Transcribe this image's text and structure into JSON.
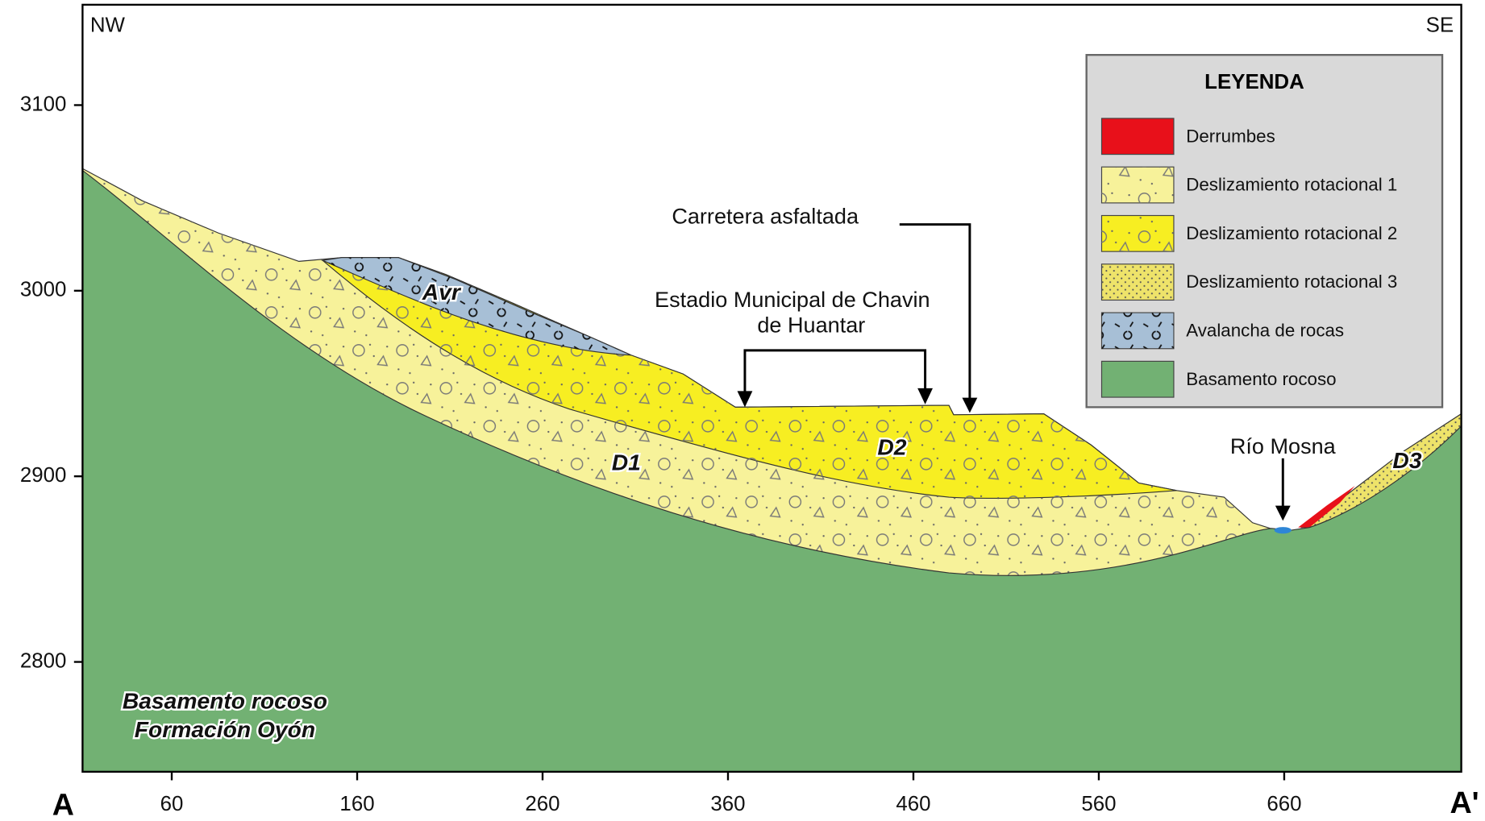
{
  "orientation": {
    "left": "NW",
    "right": "SE"
  },
  "section": {
    "start": "A",
    "end": "A'"
  },
  "axes": {
    "yticks": [
      2800,
      2900,
      3000,
      3100
    ],
    "xticks": [
      60,
      160,
      260,
      360,
      460,
      560,
      660
    ]
  },
  "units": {
    "avr": "Avr",
    "d1": "D1",
    "d2": "D2",
    "d3": "D3"
  },
  "annotations": {
    "road": "Carretera asfaltada",
    "stadium": [
      "Estadio Municipal de  Chavin",
      "de Huantar"
    ],
    "river": "Río Mosna",
    "basement": [
      "Basamento rocoso",
      "Formación Oyón"
    ]
  },
  "legend": {
    "title": "LEYENDA",
    "items": [
      {
        "label": "Derrumbes",
        "color": "#e8101a"
      },
      {
        "label": "Deslizamiento rotacional 1",
        "color": "#f7f29a"
      },
      {
        "label": "Deslizamiento rotacional 2",
        "color": "#f7ee22"
      },
      {
        "label": "Deslizamiento rotacional 3",
        "color": "#eee36a"
      },
      {
        "label": "Avalancha de rocas",
        "color": "#a7bfd6"
      },
      {
        "label": "Basamento rocoso",
        "color": "#72b173"
      }
    ]
  }
}
